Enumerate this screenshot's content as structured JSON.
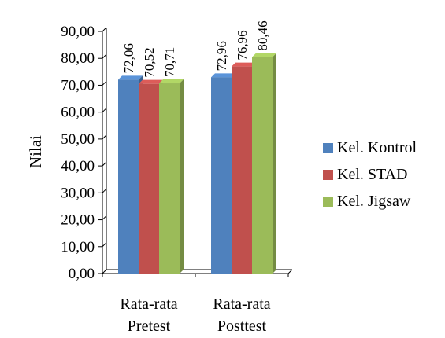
{
  "chart_data": {
    "type": "bar",
    "title": "",
    "xlabel": "",
    "ylabel": "Nilai",
    "ylim": [
      0,
      90
    ],
    "yticks": [
      "0,00",
      "10,00",
      "20,00",
      "30,00",
      "40,00",
      "50,00",
      "60,00",
      "70,00",
      "80,00",
      "90,00"
    ],
    "categories": [
      [
        "Rata-rata",
        "Pretest"
      ],
      [
        "Rata-rata",
        "Posttest"
      ]
    ],
    "series": [
      {
        "name": "Kel. Kontrol",
        "color": "#4F81BD",
        "values": [
          72.06,
          72.96
        ],
        "labels": [
          "72,06",
          "72,96"
        ]
      },
      {
        "name": "Kel. STAD",
        "color": "#C0504D",
        "values": [
          70.52,
          76.96
        ],
        "labels": [
          "70,52",
          "76,96"
        ]
      },
      {
        "name": "Kel. Jigsaw",
        "color": "#9BBB59",
        "values": [
          70.71,
          80.46
        ],
        "labels": [
          "70,71",
          "80,46"
        ]
      }
    ],
    "legend_position": "right",
    "grid": false,
    "style": "3d-bar"
  }
}
